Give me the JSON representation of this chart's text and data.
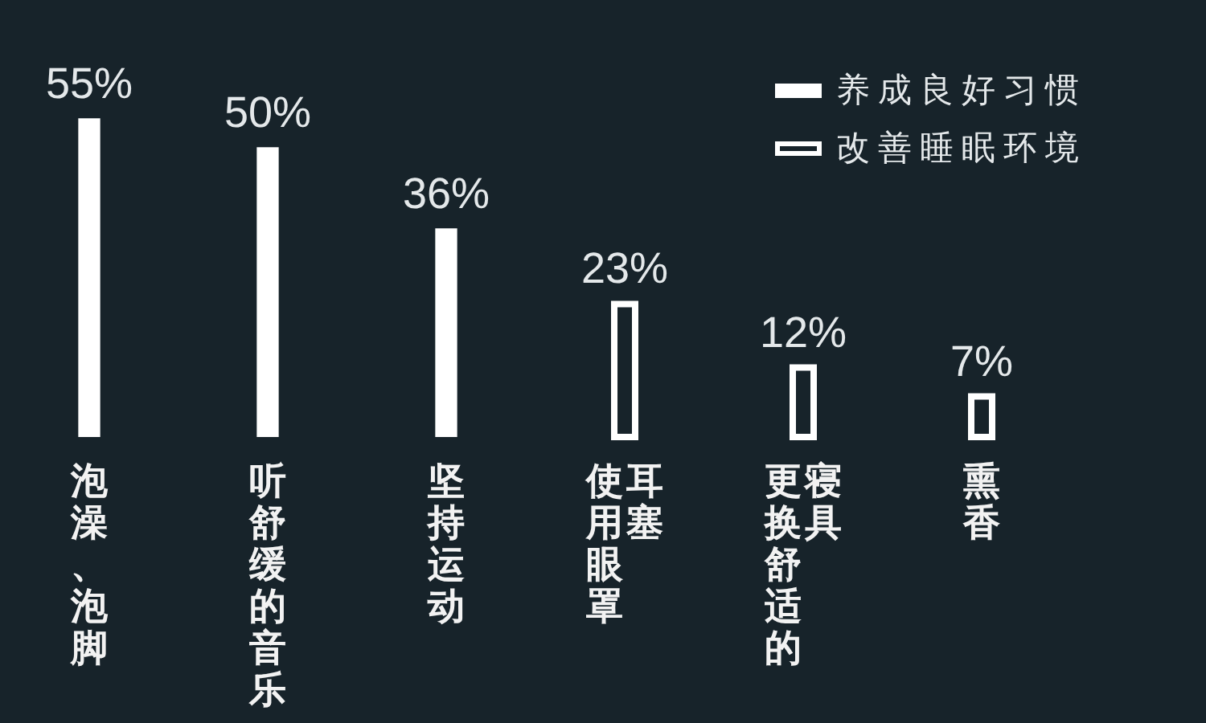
{
  "chart_data": {
    "type": "bar",
    "categories": [
      "泡澡、泡脚",
      "听舒缓的音乐",
      "坚持运动",
      "使用眼罩耳塞",
      "更换舒适的寝具",
      "熏香"
    ],
    "series": [
      {
        "name": "养成良好习惯",
        "color": "#ffffff",
        "values": [
          55,
          50,
          36,
          null,
          null,
          null
        ],
        "value_labels": [
          "55%",
          "50%",
          "36%",
          null,
          null,
          null
        ]
      },
      {
        "name": "改善睡眠环境",
        "color": "#ffffff",
        "line_style": "solid",
        "values": [
          null,
          null,
          null,
          23,
          12,
          7
        ],
        "value_labels": [
          null,
          null,
          null,
          "23%",
          "12%",
          "7%"
        ]
      }
    ],
    "legend": "top right",
    "tick_labels": "x"
  }
}
